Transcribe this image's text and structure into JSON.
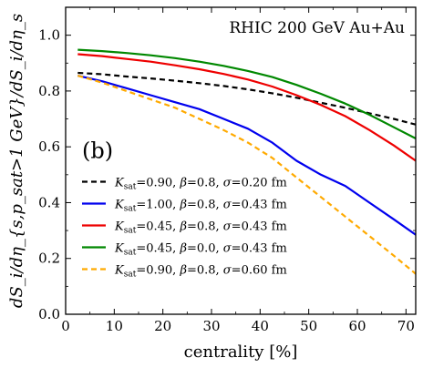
{
  "chart_data": {
    "type": "line",
    "title": "RHIC 200 GeV Au+Au",
    "panel_label": "(b)",
    "xlabel": "centrality [%]",
    "ylabel": "dS_i/dη_{s,p_sat>1 GeV}/dS_i/dη_s",
    "xlim": [
      0,
      72
    ],
    "ylim": [
      0.0,
      1.1
    ],
    "x_ticks": [
      0,
      10,
      20,
      30,
      40,
      50,
      60,
      70
    ],
    "y_ticks": [
      0.0,
      0.2,
      0.4,
      0.6,
      0.8,
      1.0
    ],
    "x_tick_labels": [
      "0",
      "10",
      "20",
      "30",
      "40",
      "50",
      "60",
      "70"
    ],
    "y_tick_labels": [
      "0.0",
      "0.2",
      "0.4",
      "0.6",
      "0.8",
      "1.0"
    ],
    "grid": false,
    "legend_position": "bottom-right",
    "series": [
      {
        "name": "K_sat=0.90, β=0.8, σ=0.20 fm",
        "legend_parts": [
          "0.90",
          "0.8",
          "0.20"
        ],
        "color": "#000000",
        "dash": "dashed",
        "x": [
          2.5,
          7.5,
          12.5,
          17.5,
          22.5,
          27.5,
          32.5,
          37.5,
          42.5,
          47.5,
          52.5,
          57.5,
          62.5,
          67.5,
          72
        ],
        "y": [
          0.865,
          0.86,
          0.852,
          0.845,
          0.837,
          0.828,
          0.818,
          0.806,
          0.792,
          0.776,
          0.758,
          0.74,
          0.72,
          0.7,
          0.68
        ]
      },
      {
        "name": "K_sat=1.00, β=0.8, σ=0.43 fm",
        "legend_parts": [
          "1.00",
          "0.8",
          "0.43"
        ],
        "color": "#0000ee",
        "dash": "solid",
        "x": [
          2.5,
          7.5,
          12.5,
          17.5,
          22.5,
          27.5,
          32.5,
          37.5,
          42.5,
          47.5,
          52.5,
          57.5,
          62.5,
          67.5,
          72
        ],
        "y": [
          0.855,
          0.835,
          0.81,
          0.785,
          0.76,
          0.735,
          0.7,
          0.665,
          0.615,
          0.55,
          0.5,
          0.46,
          0.4,
          0.34,
          0.285
        ]
      },
      {
        "name": "K_sat=0.45, β=0.8, σ=0.43 fm",
        "legend_parts": [
          "0.45",
          "0.8",
          "0.43"
        ],
        "color": "#ee0000",
        "dash": "solid",
        "x": [
          2.5,
          7.5,
          12.5,
          17.5,
          22.5,
          27.5,
          32.5,
          37.5,
          42.5,
          47.5,
          52.5,
          57.5,
          62.5,
          67.5,
          72
        ],
        "y": [
          0.932,
          0.925,
          0.915,
          0.905,
          0.892,
          0.878,
          0.861,
          0.841,
          0.816,
          0.785,
          0.75,
          0.71,
          0.66,
          0.605,
          0.55
        ]
      },
      {
        "name": "K_sat=0.45, β=0.0, σ=0.43 fm",
        "legend_parts": [
          "0.45",
          "0.0",
          "0.43"
        ],
        "color": "#008800",
        "dash": "solid",
        "x": [
          2.5,
          7.5,
          12.5,
          17.5,
          22.5,
          27.5,
          32.5,
          37.5,
          42.5,
          47.5,
          52.5,
          57.5,
          62.5,
          67.5,
          72
        ],
        "y": [
          0.948,
          0.943,
          0.936,
          0.928,
          0.918,
          0.905,
          0.89,
          0.872,
          0.85,
          0.822,
          0.79,
          0.755,
          0.715,
          0.67,
          0.63
        ]
      },
      {
        "name": "K_sat=0.90, β=0.8, σ=0.60 fm",
        "legend_parts": [
          "0.90",
          "0.8",
          "0.60"
        ],
        "color": "#ffaa00",
        "dash": "dashed",
        "x": [
          2.5,
          7.5,
          12.5,
          17.5,
          22.5,
          27.5,
          32.5,
          37.5,
          42.5,
          47.5,
          52.5,
          57.5,
          62.5,
          67.5,
          72
        ],
        "y": [
          0.855,
          0.83,
          0.8,
          0.77,
          0.74,
          0.7,
          0.66,
          0.615,
          0.56,
          0.49,
          0.42,
          0.35,
          0.28,
          0.21,
          0.145
        ]
      }
    ]
  }
}
